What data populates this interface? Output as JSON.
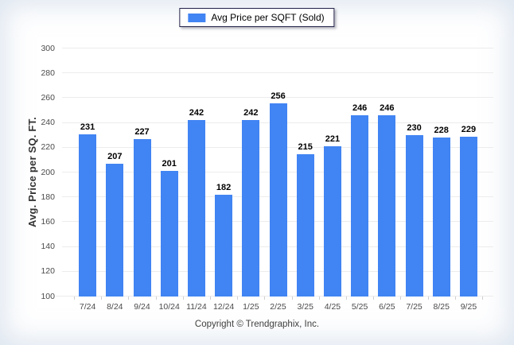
{
  "legend": {
    "label": "Avg Price per SQFT (Sold)",
    "swatch_color": "#4184f3"
  },
  "chart_data": {
    "type": "bar",
    "title": "",
    "series_name": "Avg Price per SQFT (Sold)",
    "categories": [
      "7/24",
      "8/24",
      "9/24",
      "10/24",
      "11/24",
      "12/24",
      "1/25",
      "2/25",
      "3/25",
      "4/25",
      "5/25",
      "6/25",
      "7/25",
      "8/25",
      "9/25"
    ],
    "values": [
      231,
      207,
      227,
      201,
      242,
      182,
      242,
      256,
      215,
      221,
      246,
      246,
      230,
      228,
      229
    ],
    "xlabel": "",
    "ylabel": "Avg. Price per SQ. FT.",
    "ylim": [
      100,
      300
    ],
    "ytick_step": 20,
    "grid": true,
    "legend_position": "top-center",
    "bar_color": "#4184f3",
    "gridline_color": "#ececec",
    "value_labels": true
  },
  "footer": {
    "copyright": "Copyright © Trendgraphix, Inc."
  }
}
